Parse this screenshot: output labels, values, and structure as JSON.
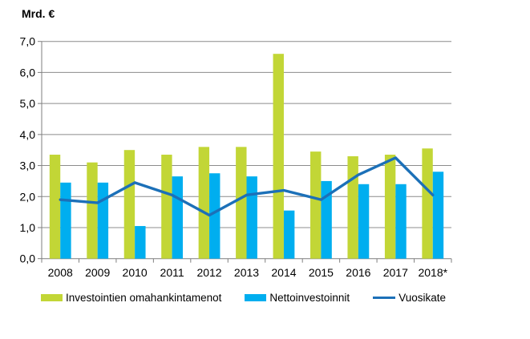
{
  "chart_data": {
    "type": "bar",
    "title": "",
    "ylabel": "Mrd. €",
    "xlabel": "",
    "categories": [
      "2008",
      "2009",
      "2010",
      "2011",
      "2012",
      "2013",
      "2014",
      "2015",
      "2016",
      "2017",
      "2018*"
    ],
    "series": [
      {
        "name": "Investointien omahankintamenot",
        "kind": "bar",
        "color": "#c2d636",
        "values": [
          3.35,
          3.1,
          3.5,
          3.35,
          3.6,
          3.6,
          6.6,
          3.45,
          3.3,
          3.35,
          3.55
        ]
      },
      {
        "name": "Nettoinvestoinnit",
        "kind": "bar",
        "color": "#00aeef",
        "values": [
          2.45,
          2.45,
          1.05,
          2.65,
          2.75,
          2.65,
          1.55,
          2.5,
          2.4,
          2.4,
          2.8
        ]
      },
      {
        "name": "Vuosikate",
        "kind": "line",
        "color": "#1c70b8",
        "values": [
          1.9,
          1.8,
          2.45,
          2.05,
          1.4,
          2.05,
          2.2,
          1.9,
          2.7,
          3.25,
          2.05
        ]
      }
    ],
    "ylim": [
      0,
      7
    ],
    "ytick_step": 1,
    "ytick_labels": [
      "0,0",
      "1,0",
      "2,0",
      "3,0",
      "4,0",
      "5,0",
      "6,0",
      "7,0"
    ],
    "grid": true,
    "grid_color": "#8c8c8c",
    "axis_color": "#7f7f7f",
    "text_color": "#000000",
    "legend_position": "bottom"
  }
}
